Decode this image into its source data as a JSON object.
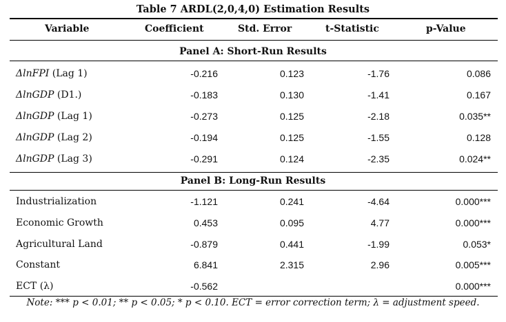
{
  "table_title": "Table 7 ARDL(2,0,4,0) Estimation Results",
  "headers": {
    "variable": "Variable",
    "coefficient": "Coefficient",
    "std_error": "Std. Error",
    "t_stat": "t-Statistic",
    "p_value": "p-Value"
  },
  "panel_a": {
    "title": "Panel A: Short-Run Results",
    "rows": [
      {
        "var_main": "ΔlnFPI",
        "var_suffix": " (Lag 1)",
        "coef": "-0.216",
        "se": "0.123",
        "t": "-1.76",
        "p": "0.086"
      },
      {
        "var_main": "ΔlnGDP",
        "var_suffix": " (D1.)",
        "coef": "-0.183",
        "se": "0.130",
        "t": "-1.41",
        "p": "0.167"
      },
      {
        "var_main": "ΔlnGDP",
        "var_suffix": " (Lag 1)",
        "coef": "-0.273",
        "se": "0.125",
        "t": "-2.18",
        "p": "0.035**"
      },
      {
        "var_main": "ΔlnGDP",
        "var_suffix": " (Lag 2)",
        "coef": "-0.194",
        "se": "0.125",
        "t": "-1.55",
        "p": "0.128"
      },
      {
        "var_main": "ΔlnGDP",
        "var_suffix": " (Lag 3)",
        "coef": "-0.291",
        "se": "0.124",
        "t": "-2.35",
        "p": "0.024**"
      }
    ]
  },
  "panel_b": {
    "title": "Panel B: Long-Run Results",
    "rows": [
      {
        "var": "Industrialization",
        "coef": "-1.121",
        "se": "0.241",
        "t": "-4.64",
        "p": "0.000***"
      },
      {
        "var": "Economic Growth",
        "coef": "0.453",
        "se": "0.095",
        "t": "4.77",
        "p": "0.000***"
      },
      {
        "var": "Agricultural Land",
        "coef": "-0.879",
        "se": "0.441",
        "t": "-1.99",
        "p": "0.053*"
      },
      {
        "var": "Constant",
        "coef": "6.841",
        "se": "2.315",
        "t": "2.96",
        "p": "0.005***"
      },
      {
        "var": "ECT (λ)",
        "coef": "-0.562",
        "se": "",
        "t": "",
        "p": "0.000***"
      }
    ]
  },
  "note": "Note: *** p < 0.01; ** p < 0.05; * p < 0.10. ECT = error correction term; λ = adjustment speed."
}
